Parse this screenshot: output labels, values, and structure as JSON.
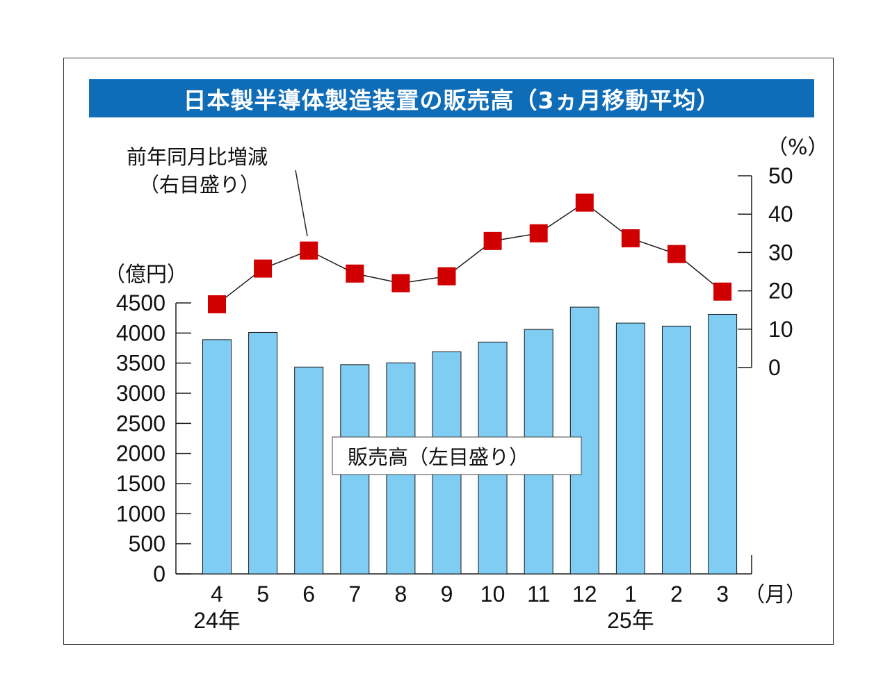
{
  "chart_data": {
    "type": "bar+line",
    "title": "日本製半導体製造装置の販売高（3ヵ月移動平均）",
    "categories": [
      "4",
      "5",
      "6",
      "7",
      "8",
      "9",
      "10",
      "11",
      "12",
      "1",
      "2",
      "3"
    ],
    "year_labels": [
      {
        "category_index": 0,
        "text": "24年"
      },
      {
        "category_index": 9,
        "text": "25年"
      }
    ],
    "x_unit": "（月）",
    "left_axis": {
      "unit": "（億円）",
      "ylim": [
        0,
        4500
      ],
      "ticks": [
        "0",
        "500",
        "1000",
        "1500",
        "2000",
        "2500",
        "3000",
        "3500",
        "4000",
        "4500"
      ]
    },
    "right_axis": {
      "unit": "（%）",
      "ylim": [
        0,
        50
      ],
      "ticks": [
        "0",
        "10",
        "20",
        "30",
        "40",
        "50"
      ]
    },
    "series": [
      {
        "name": "販売高（左目盛り）",
        "kind": "bar",
        "axis": "left",
        "values": [
          3890,
          4010,
          3435,
          3475,
          3505,
          3690,
          3850,
          4060,
          4430,
          4165,
          4115,
          4310
        ]
      },
      {
        "name": "前年同月比増減（右目盛り）",
        "kind": "line",
        "axis": "right",
        "values": [
          16.5,
          25.8,
          30.5,
          24.5,
          22.0,
          23.8,
          33.0,
          35.0,
          43.0,
          33.7,
          29.6,
          19.8
        ]
      }
    ],
    "annotations": {
      "line_label_1": "前年同月比増減",
      "line_label_2": "（右目盛り）",
      "bar_label": "販売高（左目盛り）"
    },
    "colors": {
      "bar": "#7fcdf2",
      "bar_stroke": "#1a1a1a",
      "marker": "#d10000",
      "line": "#1a1a1a",
      "title_bg": "#0f6db8"
    }
  }
}
